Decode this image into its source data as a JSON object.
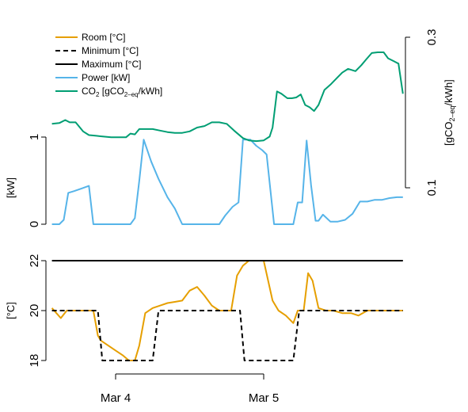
{
  "chart_data": {
    "type": "line",
    "legend": {
      "placement": "top-left",
      "entries": [
        {
          "label": "Room [°C]",
          "color": "#E69F00",
          "dash": "solid"
        },
        {
          "label": "Minimum [°C]",
          "color": "#000000",
          "dash": "dashed"
        },
        {
          "label": "Maximum [°C]",
          "color": "#000000",
          "dash": "solid"
        },
        {
          "label": "Power [kW]",
          "color": "#56B4E9",
          "dash": "solid"
        },
        {
          "label_main": "CO",
          "label_sub": "2",
          "label_rest": " [gCO",
          "label_sub2": "2–eq",
          "label_end": "/kWh]",
          "color": "#009E73",
          "dash": "solid"
        }
      ]
    },
    "x_ticks": [
      {
        "label": "Mar 4",
        "t": 1.0
      },
      {
        "label": "Mar 5",
        "t": 2.0
      }
    ],
    "x_range": [
      0.55,
      2.95
    ],
    "top_panel": {
      "ylabel_left": "[kW]",
      "ylabel_right_main": "[gCO",
      "ylabel_right_sub": "2–eq",
      "ylabel_right_end": "/kWh]",
      "left_ticks": [
        {
          "label": "0",
          "v": 0
        },
        {
          "label": "1",
          "v": 1
        }
      ],
      "left_range": [
        0,
        1
      ],
      "right_ticks": [
        {
          "label": "0.1",
          "v": 0.1
        },
        {
          "label": "0.3",
          "v": 0.3
        }
      ],
      "right_range": [
        0.1,
        0.3
      ],
      "series": [
        {
          "name": "Power [kW]",
          "color": "#56B4E9",
          "axis": "left",
          "x": [
            0.57,
            0.62,
            0.65,
            0.68,
            0.72,
            0.77,
            0.82,
            0.85,
            0.89,
            0.92,
            0.95,
            0.98,
            1.02,
            1.06,
            1.1,
            1.13,
            1.16,
            1.19,
            1.24,
            1.29,
            1.35,
            1.4,
            1.45,
            1.5,
            1.55,
            1.6,
            1.65,
            1.7,
            1.74,
            1.79,
            1.83,
            1.86,
            1.91,
            1.95,
            1.99,
            2.02,
            2.07,
            2.11,
            2.14,
            2.17,
            2.2,
            2.23,
            2.26,
            2.29,
            2.32,
            2.35,
            2.37,
            2.4,
            2.45,
            2.5,
            2.55,
            2.6,
            2.65,
            2.7,
            2.75,
            2.8,
            2.85,
            2.9,
            2.94
          ],
          "y": [
            0.0,
            0.0,
            0.05,
            0.36,
            0.38,
            0.41,
            0.44,
            0.0,
            0.0,
            0.0,
            0.0,
            0.0,
            0.0,
            0.0,
            0.0,
            0.07,
            0.5,
            0.97,
            0.72,
            0.52,
            0.31,
            0.18,
            0.0,
            0.0,
            0.0,
            0.0,
            0.0,
            0.0,
            0.1,
            0.2,
            0.25,
            0.97,
            0.97,
            0.9,
            0.85,
            0.8,
            0.0,
            0.0,
            0.0,
            0.0,
            0.0,
            0.25,
            0.25,
            0.96,
            0.45,
            0.04,
            0.04,
            0.11,
            0.03,
            0.03,
            0.05,
            0.12,
            0.26,
            0.26,
            0.28,
            0.28,
            0.3,
            0.31,
            0.31
          ]
        },
        {
          "name": "CO2 [gCO2-eq/kWh]",
          "color": "#009E73",
          "axis": "right",
          "x": [
            0.57,
            0.62,
            0.66,
            0.69,
            0.73,
            0.78,
            0.82,
            0.87,
            0.92,
            0.97,
            1.02,
            1.07,
            1.1,
            1.13,
            1.16,
            1.2,
            1.25,
            1.3,
            1.35,
            1.4,
            1.45,
            1.5,
            1.55,
            1.6,
            1.65,
            1.7,
            1.75,
            1.8,
            1.86,
            1.9,
            1.95,
            2.0,
            2.04,
            2.06,
            2.09,
            2.12,
            2.16,
            2.19,
            2.22,
            2.25,
            2.28,
            2.31,
            2.34,
            2.37,
            2.41,
            2.45,
            2.49,
            2.53,
            2.57,
            2.62,
            2.66,
            2.69,
            2.73,
            2.77,
            2.81,
            2.84,
            2.88,
            2.91,
            2.94
          ],
          "y": [
            0.185,
            0.186,
            0.19,
            0.187,
            0.187,
            0.175,
            0.17,
            0.169,
            0.168,
            0.167,
            0.167,
            0.167,
            0.172,
            0.171,
            0.178,
            0.178,
            0.178,
            0.176,
            0.174,
            0.173,
            0.173,
            0.175,
            0.18,
            0.182,
            0.187,
            0.187,
            0.185,
            0.176,
            0.166,
            0.163,
            0.162,
            0.163,
            0.168,
            0.18,
            0.228,
            0.225,
            0.219,
            0.219,
            0.22,
            0.224,
            0.21,
            0.207,
            0.202,
            0.21,
            0.23,
            0.237,
            0.245,
            0.253,
            0.258,
            0.255,
            0.263,
            0.27,
            0.279,
            0.28,
            0.28,
            0.272,
            0.268,
            0.265,
            0.225
          ]
        }
      ]
    },
    "bottom_panel": {
      "ylabel_left": "[°C]",
      "left_ticks": [
        {
          "label": "18",
          "v": 18
        },
        {
          "label": "20",
          "v": 20
        },
        {
          "label": "22",
          "v": 22
        }
      ],
      "left_range": [
        18,
        22
      ],
      "series": [
        {
          "name": "Room [°C]",
          "color": "#E69F00",
          "dash": "solid",
          "x": [
            0.57,
            0.6,
            0.63,
            0.67,
            0.72,
            0.78,
            0.85,
            0.88,
            0.9,
            0.95,
            1.0,
            1.05,
            1.09,
            1.13,
            1.16,
            1.2,
            1.25,
            1.3,
            1.35,
            1.4,
            1.45,
            1.5,
            1.55,
            1.6,
            1.65,
            1.7,
            1.74,
            1.78,
            1.82,
            1.86,
            1.9,
            1.95,
            2.0,
            2.06,
            2.1,
            2.15,
            2.2,
            2.23,
            2.27,
            2.3,
            2.33,
            2.37,
            2.42,
            2.47,
            2.53,
            2.59,
            2.64,
            2.7,
            2.76,
            2.82,
            2.88,
            2.94
          ],
          "y": [
            20.1,
            19.9,
            19.7,
            20.0,
            20.0,
            20.0,
            20.0,
            19.0,
            18.8,
            18.6,
            18.4,
            18.2,
            18.0,
            18.0,
            18.6,
            19.9,
            20.1,
            20.2,
            20.3,
            20.35,
            20.4,
            20.8,
            20.95,
            20.6,
            20.2,
            20.0,
            20.0,
            20.0,
            21.4,
            21.8,
            22.0,
            22.0,
            22.0,
            20.4,
            20.0,
            19.8,
            19.5,
            20.0,
            20.0,
            21.5,
            21.2,
            20.1,
            20.0,
            20.0,
            19.9,
            19.9,
            19.8,
            20.0,
            20.0,
            20.0,
            20.0,
            20.0
          ]
        },
        {
          "name": "Minimum [°C]",
          "color": "#000000",
          "dash": "dashed",
          "x": [
            0.57,
            0.88,
            0.91,
            1.25,
            1.29,
            1.84,
            1.87,
            2.2,
            2.24,
            2.94
          ],
          "y": [
            20,
            20,
            18,
            18,
            20,
            20,
            18,
            18,
            20,
            20
          ]
        },
        {
          "name": "Maximum [°C]",
          "color": "#000000",
          "dash": "solid",
          "x": [
            0.57,
            2.94
          ],
          "y": [
            22,
            22
          ]
        }
      ]
    }
  }
}
